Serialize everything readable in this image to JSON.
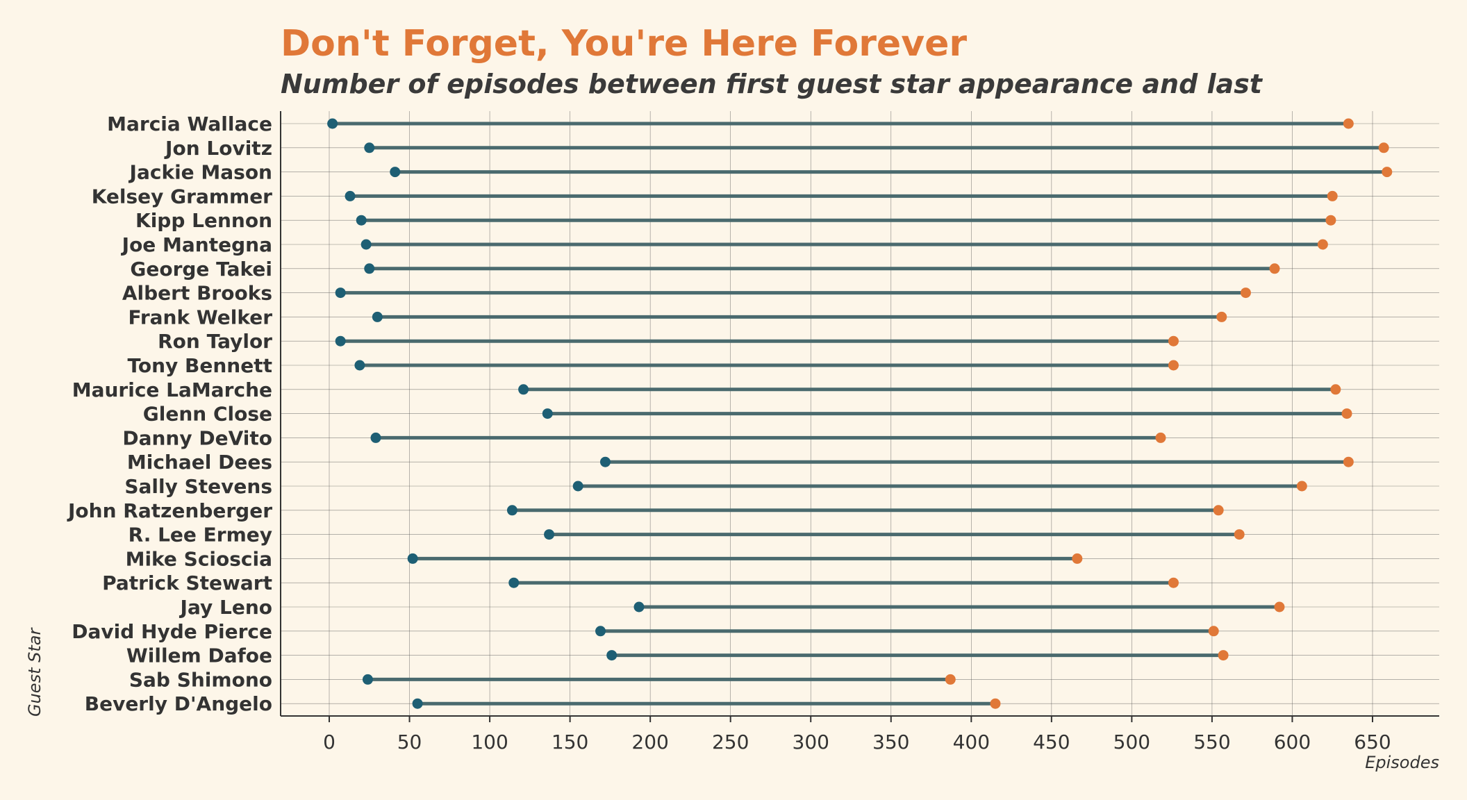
{
  "chart_data": {
    "type": "dumbbell",
    "title": "Don't Forget, You're Here Forever",
    "subtitle": "Number of episodes between first guest star appearance and last",
    "xlabel": "Episodes",
    "ylabel": "Guest Star",
    "xlim": [
      -30,
      695
    ],
    "xticks": [
      0,
      50,
      100,
      150,
      200,
      250,
      300,
      350,
      400,
      450,
      500,
      550,
      600,
      650
    ],
    "grid": true,
    "colors": {
      "start": "#1e5f74",
      "end": "#e07838",
      "segment": "#4a6a6e",
      "title": "#e07838"
    },
    "categories": [
      "Marcia Wallace",
      "Jon Lovitz",
      "Jackie Mason",
      "Kelsey Grammer",
      "Kipp Lennon",
      "Joe Mantegna",
      "George Takei",
      "Albert Brooks",
      "Frank Welker",
      "Ron Taylor",
      "Tony Bennett",
      "Maurice LaMarche",
      "Glenn Close",
      "Danny DeVito",
      "Michael Dees",
      "Sally Stevens",
      "John Ratzenberger",
      "R. Lee Ermey",
      "Mike Scioscia",
      "Patrick Stewart",
      "Jay Leno",
      "David Hyde Pierce",
      "Willem Dafoe",
      "Sab Shimono",
      "Beverly D'Angelo"
    ],
    "first": [
      2,
      25,
      41,
      13,
      20,
      23,
      25,
      7,
      30,
      7,
      19,
      121,
      136,
      29,
      172,
      155,
      114,
      137,
      52,
      115,
      193,
      169,
      176,
      24,
      55
    ],
    "last": [
      635,
      657,
      659,
      625,
      624,
      619,
      589,
      571,
      556,
      526,
      526,
      627,
      634,
      518,
      635,
      606,
      554,
      567,
      466,
      526,
      592,
      551,
      557,
      387,
      415
    ]
  }
}
